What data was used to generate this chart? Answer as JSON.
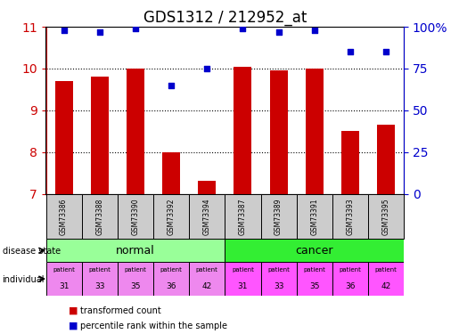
{
  "title": "GDS1312 / 212952_at",
  "samples": [
    "GSM73386",
    "GSM73388",
    "GSM73390",
    "GSM73392",
    "GSM73394",
    "GSM73387",
    "GSM73389",
    "GSM73391",
    "GSM73393",
    "GSM73395"
  ],
  "transformed_count": [
    9.7,
    9.8,
    10.0,
    8.0,
    7.3,
    10.05,
    9.95,
    10.0,
    8.5,
    8.65
  ],
  "percentile_rank": [
    98,
    97,
    99,
    65,
    75,
    99,
    97,
    98,
    85,
    85
  ],
  "disease_state": [
    "normal",
    "normal",
    "normal",
    "normal",
    "normal",
    "cancer",
    "cancer",
    "cancer",
    "cancer",
    "cancer"
  ],
  "individual": [
    "31",
    "33",
    "35",
    "36",
    "42",
    "31",
    "33",
    "35",
    "36",
    "42"
  ],
  "ylim_left": [
    7,
    11
  ],
  "ylim_right": [
    0,
    100
  ],
  "yticks_left": [
    7,
    8,
    9,
    10,
    11
  ],
  "yticks_right": [
    0,
    25,
    50,
    75,
    100
  ],
  "bar_color": "#cc0000",
  "scatter_color": "#0000cc",
  "normal_color": "#99ff99",
  "cancer_color": "#33ee33",
  "individual_color_normal": "#ee88ee",
  "individual_color_cancer": "#ff55ff",
  "sample_label_bg": "#cccccc",
  "title_fontsize": 12,
  "axis_label_color_left": "#cc0000",
  "axis_label_color_right": "#0000cc"
}
